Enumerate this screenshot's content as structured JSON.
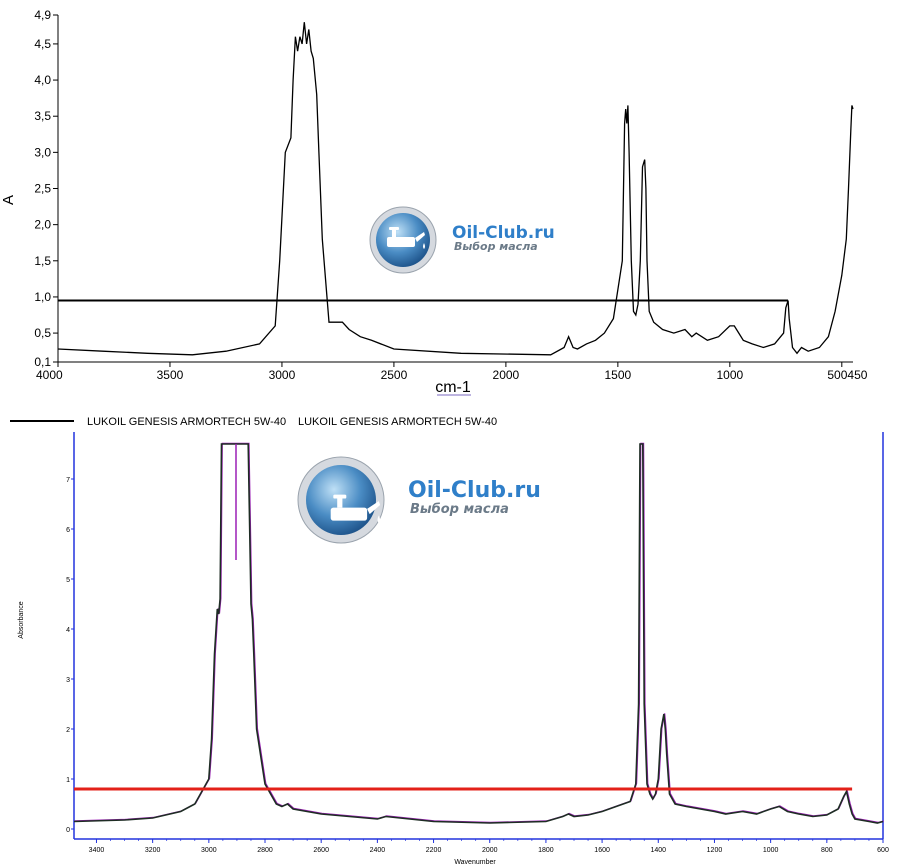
{
  "watermark": {
    "title": "Oil-Club.ru",
    "subtitle": "Выбор масла",
    "icon": "oil-can-icon"
  },
  "chart_data": [
    {
      "type": "line",
      "ylabel": "A",
      "xlabel": "cm-1",
      "x_ticks": [
        "4000",
        "3500",
        "3000",
        "2500",
        "2000",
        "1500",
        "1000",
        "500450"
      ],
      "y_ticks": [
        "0,1",
        "0,5",
        "1,0",
        "1,5",
        "2,0",
        "2,5",
        "3,0",
        "3,5",
        "4,0",
        "4,5",
        "4,9"
      ],
      "xlim": [
        4000,
        450
      ],
      "ylim": [
        0.1,
        4.9
      ],
      "legend": {
        "placement": "bottom-left",
        "entries": [
          "LUKOIL GENESIS ARMORTECH 5W-40",
          "LUKOIL GENESIS ARMORTECH 5W-40"
        ]
      },
      "reference_line": {
        "y": 0.95,
        "x_from": 4000,
        "x_to": 740
      },
      "colors": {
        "series": "#000000",
        "reference_line": "#000000"
      },
      "series": [
        {
          "x": [
            4000,
            3800,
            3600,
            3400,
            3250,
            3100,
            3030,
            3010,
            2985,
            2960,
            2950,
            2940,
            2930,
            2920,
            2910,
            2900,
            2890,
            2880,
            2870,
            2860,
            2845,
            2835,
            2820,
            2790,
            2730,
            2700,
            2650,
            2600,
            2500,
            2200,
            1800,
            1740,
            1720,
            1700,
            1680,
            1640,
            1600,
            1560,
            1520,
            1480,
            1470,
            1465,
            1460,
            1455,
            1450,
            1440,
            1430,
            1420,
            1410,
            1400,
            1390,
            1380,
            1375,
            1370,
            1360,
            1340,
            1300,
            1250,
            1200,
            1170,
            1150,
            1100,
            1050,
            1000,
            980,
            960,
            940,
            900,
            850,
            800,
            760,
            750,
            740,
            735,
            720,
            700,
            680,
            650,
            600,
            560,
            530,
            500,
            480,
            470,
            460,
            455,
            450
          ],
          "values": [
            0.28,
            0.25,
            0.22,
            0.2,
            0.25,
            0.35,
            0.6,
            1.5,
            3.0,
            3.2,
            4.0,
            4.6,
            4.4,
            4.6,
            4.5,
            4.8,
            4.5,
            4.7,
            4.4,
            4.3,
            3.8,
            3.0,
            1.8,
            0.65,
            0.65,
            0.55,
            0.45,
            0.4,
            0.28,
            0.22,
            0.2,
            0.3,
            0.45,
            0.3,
            0.28,
            0.35,
            0.4,
            0.5,
            0.7,
            1.5,
            3.4,
            3.6,
            3.4,
            3.65,
            3.0,
            1.5,
            0.8,
            0.75,
            0.9,
            1.5,
            2.8,
            2.9,
            2.5,
            1.5,
            0.8,
            0.65,
            0.55,
            0.5,
            0.55,
            0.45,
            0.5,
            0.4,
            0.45,
            0.6,
            0.6,
            0.5,
            0.4,
            0.35,
            0.3,
            0.35,
            0.5,
            0.85,
            0.95,
            0.7,
            0.3,
            0.22,
            0.3,
            0.25,
            0.3,
            0.45,
            0.8,
            1.3,
            1.8,
            2.5,
            3.3,
            3.65,
            3.6
          ]
        }
      ]
    },
    {
      "type": "line",
      "ylabel": "Absorbance",
      "xlabel": "Wavenumber",
      "x_ticks": [
        "3400",
        "3200",
        "3000",
        "2800",
        "2600",
        "2400",
        "2200",
        "2000",
        "1800",
        "1600",
        "1400",
        "1200",
        "1000",
        "800",
        "600"
      ],
      "y_ticks": [
        "0",
        "1",
        "2",
        "3",
        "4",
        "5",
        "6",
        "7"
      ],
      "xlim": [
        3480,
        600
      ],
      "ylim": [
        -0.2,
        7.7
      ],
      "reference_line": {
        "y": 0.8,
        "x_from": 3480,
        "x_to": 710
      },
      "colors": {
        "series": "#1e2d24",
        "secondary": "#9b1fb5",
        "reference_line": "#e32119",
        "frame": "#2233dd"
      },
      "series": [
        {
          "name": "",
          "x": [
            3480,
            3300,
            3200,
            3100,
            3050,
            3000,
            2990,
            2980,
            2970,
            2965,
            2960,
            2955,
            2940,
            2930,
            2920,
            2910,
            2880,
            2870,
            2860,
            2850,
            2845,
            2840,
            2830,
            2800,
            2760,
            2740,
            2720,
            2700,
            2600,
            2400,
            2370,
            2200,
            2000,
            1800,
            1740,
            1720,
            1700,
            1650,
            1600,
            1550,
            1500,
            1480,
            1470,
            1465,
            1460,
            1455,
            1450,
            1440,
            1430,
            1420,
            1410,
            1400,
            1390,
            1380,
            1375,
            1370,
            1360,
            1340,
            1300,
            1250,
            1200,
            1160,
            1100,
            1050,
            1000,
            970,
            940,
            900,
            850,
            800,
            760,
            740,
            730,
            720,
            710,
            700,
            650,
            620,
            600
          ],
          "values": [
            0.15,
            0.18,
            0.22,
            0.35,
            0.5,
            1.0,
            1.8,
            3.5,
            4.4,
            4.3,
            4.6,
            8.0,
            8.0,
            8.0,
            8.0,
            8.0,
            8.0,
            8.0,
            8.0,
            4.5,
            4.2,
            3.5,
            2.0,
            0.9,
            0.5,
            0.45,
            0.5,
            0.4,
            0.3,
            0.2,
            0.25,
            0.15,
            0.12,
            0.15,
            0.25,
            0.3,
            0.25,
            0.28,
            0.35,
            0.45,
            0.55,
            0.9,
            2.5,
            8.0,
            8.0,
            8.0,
            2.5,
            0.9,
            0.7,
            0.6,
            0.7,
            1.0,
            2.0,
            2.3,
            2.0,
            1.5,
            0.7,
            0.5,
            0.45,
            0.4,
            0.35,
            0.3,
            0.35,
            0.3,
            0.4,
            0.45,
            0.35,
            0.3,
            0.25,
            0.28,
            0.4,
            0.65,
            0.75,
            0.5,
            0.3,
            0.2,
            0.15,
            0.12,
            0.15
          ]
        }
      ]
    }
  ]
}
